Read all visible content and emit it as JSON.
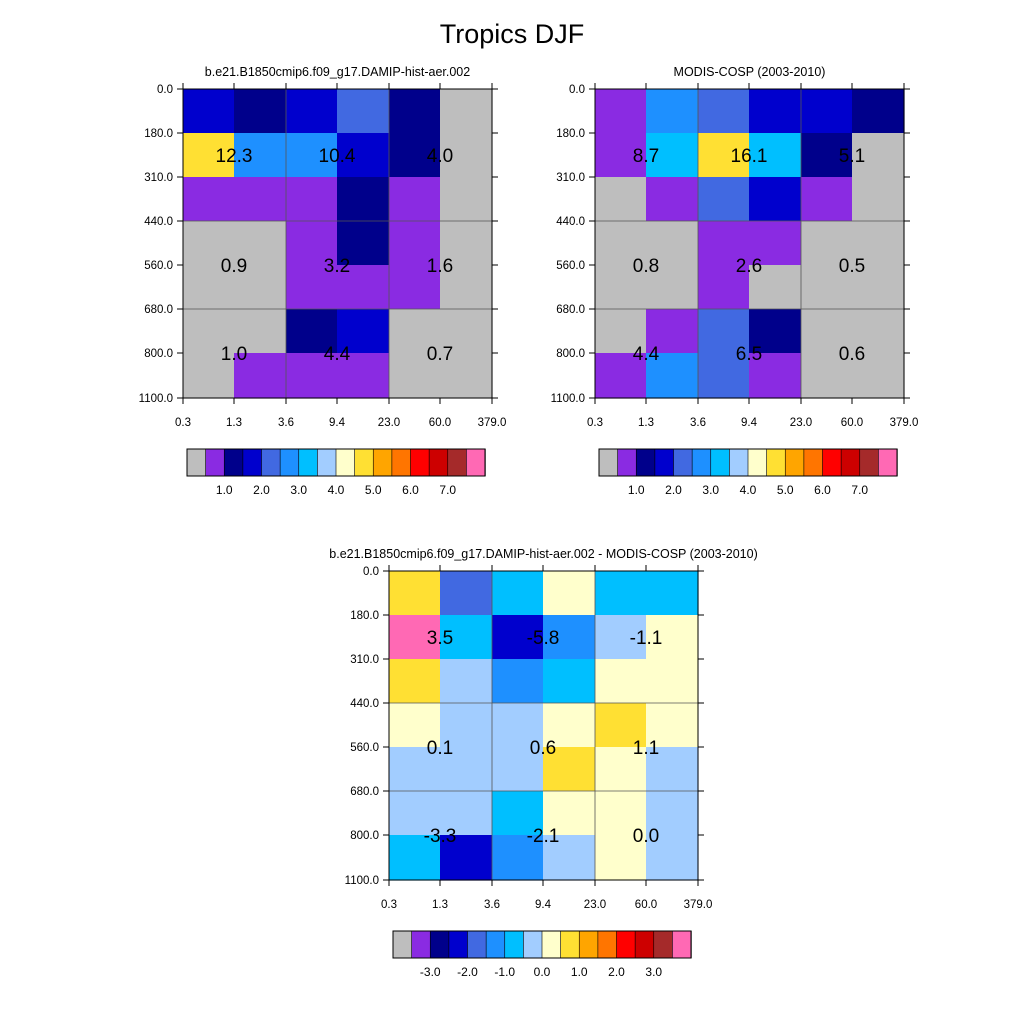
{
  "figure_title": "Tropics DJF",
  "chart_data": [
    {
      "type": "heatmap",
      "title": "b.e21.B1850cmip6.f09_g17.DAMIP-hist-aer.002",
      "x_ticks": [
        "0.3",
        "1.3",
        "3.6",
        "9.4",
        "23.0",
        "60.0",
        "379.0"
      ],
      "y_ticks": [
        "0.0",
        "180.0",
        "310.0",
        "440.0",
        "560.0",
        "680.0",
        "800.0",
        "1100.0"
      ],
      "cell_colors": [
        [
          "#0000CD",
          "#00008B",
          "#0000CD",
          "#4169E1",
          "#00008B",
          "#BEBEBE"
        ],
        [
          "#FFE033",
          "#1E90FF",
          "#1E90FF",
          "#0000CD",
          "#00008B",
          "#BEBEBE"
        ],
        [
          "#8A2BE2",
          "#8A2BE2",
          "#8A2BE2",
          "#00008B",
          "#8A2BE2",
          "#BEBEBE"
        ],
        [
          "#BEBEBE",
          "#BEBEBE",
          "#8A2BE2",
          "#00008B",
          "#8A2BE2",
          "#BEBEBE"
        ],
        [
          "#BEBEBE",
          "#BEBEBE",
          "#8A2BE2",
          "#8A2BE2",
          "#8A2BE2",
          "#BEBEBE"
        ],
        [
          "#BEBEBE",
          "#BEBEBE",
          "#00008B",
          "#0000CD",
          "#BEBEBE",
          "#BEBEBE"
        ],
        [
          "#BEBEBE",
          "#8A2BE2",
          "#8A2BE2",
          "#8A2BE2",
          "#BEBEBE",
          "#BEBEBE"
        ]
      ],
      "block_labels": [
        {
          "value": "12.3",
          "col": 1,
          "row": 1.5
        },
        {
          "value": "10.4",
          "col": 3,
          "row": 1.5
        },
        {
          "value": "4.0",
          "col": 5,
          "row": 1.5
        },
        {
          "value": "0.9",
          "col": 1,
          "row": 4
        },
        {
          "value": "3.2",
          "col": 3,
          "row": 4
        },
        {
          "value": "1.6",
          "col": 5,
          "row": 4
        },
        {
          "value": "1.0",
          "col": 1,
          "row": 6
        },
        {
          "value": "4.4",
          "col": 3,
          "row": 6
        },
        {
          "value": "0.7",
          "col": 5,
          "row": 6
        }
      ],
      "colorbar": {
        "colors": [
          "#BEBEBE",
          "#8A2BE2",
          "#00008B",
          "#0000CD",
          "#4169E1",
          "#1E90FF",
          "#00BFFF",
          "#A2CDFF",
          "#FFFFCC",
          "#FFE033",
          "#FFA500",
          "#FF7500",
          "#FF0000",
          "#CD0000",
          "#A52A2A",
          "#FF69B4"
        ],
        "labels": [
          "1.0",
          "2.0",
          "3.0",
          "4.0",
          "5.0",
          "6.0",
          "7.0"
        ],
        "label_first_boundary": 2
      }
    },
    {
      "type": "heatmap",
      "title": "MODIS-COSP (2003-2010)",
      "x_ticks": [
        "0.3",
        "1.3",
        "3.6",
        "9.4",
        "23.0",
        "60.0",
        "379.0"
      ],
      "y_ticks": [
        "0.0",
        "180.0",
        "310.0",
        "440.0",
        "560.0",
        "680.0",
        "800.0",
        "1100.0"
      ],
      "cell_colors": [
        [
          "#8A2BE2",
          "#1E90FF",
          "#4169E1",
          "#0000CD",
          "#0000CD",
          "#00008B"
        ],
        [
          "#8A2BE2",
          "#00BFFF",
          "#FFE033",
          "#00BFFF",
          "#00008B",
          "#BEBEBE"
        ],
        [
          "#BEBEBE",
          "#8A2BE2",
          "#4169E1",
          "#0000CD",
          "#8A2BE2",
          "#BEBEBE"
        ],
        [
          "#BEBEBE",
          "#BEBEBE",
          "#8A2BE2",
          "#8A2BE2",
          "#BEBEBE",
          "#BEBEBE"
        ],
        [
          "#BEBEBE",
          "#BEBEBE",
          "#8A2BE2",
          "#BEBEBE",
          "#BEBEBE",
          "#BEBEBE"
        ],
        [
          "#BEBEBE",
          "#8A2BE2",
          "#4169E1",
          "#00008B",
          "#BEBEBE",
          "#BEBEBE"
        ],
        [
          "#8A2BE2",
          "#1E90FF",
          "#4169E1",
          "#8A2BE2",
          "#BEBEBE",
          "#BEBEBE"
        ]
      ],
      "block_labels": [
        {
          "value": "8.7",
          "col": 1,
          "row": 1.5
        },
        {
          "value": "16.1",
          "col": 3,
          "row": 1.5
        },
        {
          "value": "5.1",
          "col": 5,
          "row": 1.5
        },
        {
          "value": "0.8",
          "col": 1,
          "row": 4
        },
        {
          "value": "2.6",
          "col": 3,
          "row": 4
        },
        {
          "value": "0.5",
          "col": 5,
          "row": 4
        },
        {
          "value": "4.4",
          "col": 1,
          "row": 6
        },
        {
          "value": "6.5",
          "col": 3,
          "row": 6
        },
        {
          "value": "0.6",
          "col": 5,
          "row": 6
        }
      ],
      "colorbar": {
        "colors": [
          "#BEBEBE",
          "#8A2BE2",
          "#00008B",
          "#0000CD",
          "#4169E1",
          "#1E90FF",
          "#00BFFF",
          "#A2CDFF",
          "#FFFFCC",
          "#FFE033",
          "#FFA500",
          "#FF7500",
          "#FF0000",
          "#CD0000",
          "#A52A2A",
          "#FF69B4"
        ],
        "labels": [
          "1.0",
          "2.0",
          "3.0",
          "4.0",
          "5.0",
          "6.0",
          "7.0"
        ],
        "label_first_boundary": 2
      }
    },
    {
      "type": "heatmap",
      "title": "b.e21.B1850cmip6.f09_g17.DAMIP-hist-aer.002 - MODIS-COSP (2003-2010)",
      "x_ticks": [
        "0.3",
        "1.3",
        "3.6",
        "9.4",
        "23.0",
        "60.0",
        "379.0"
      ],
      "y_ticks": [
        "0.0",
        "180.0",
        "310.0",
        "440.0",
        "560.0",
        "680.0",
        "800.0",
        "1100.0"
      ],
      "cell_colors": [
        [
          "#FFE033",
          "#4169E1",
          "#00BFFF",
          "#FFFFCC",
          "#00BFFF",
          "#00BFFF"
        ],
        [
          "#FF69B4",
          "#00BFFF",
          "#0000CD",
          "#1E90FF",
          "#A2CDFF",
          "#FFFFCC"
        ],
        [
          "#FFE033",
          "#A2CDFF",
          "#1E90FF",
          "#00BFFF",
          "#FFFFCC",
          "#FFFFCC"
        ],
        [
          "#FFFFCC",
          "#A2CDFF",
          "#A2CDFF",
          "#FFFFCC",
          "#FFE033",
          "#FFFFCC"
        ],
        [
          "#A2CDFF",
          "#A2CDFF",
          "#A2CDFF",
          "#FFE033",
          "#FFFFCC",
          "#A2CDFF"
        ],
        [
          "#A2CDFF",
          "#A2CDFF",
          "#00BFFF",
          "#FFFFCC",
          "#FFFFCC",
          "#A2CDFF"
        ],
        [
          "#00BFFF",
          "#0000CD",
          "#1E90FF",
          "#A2CDFF",
          "#FFFFCC",
          "#A2CDFF"
        ]
      ],
      "block_labels": [
        {
          "value": "3.5",
          "col": 1,
          "row": 1.5
        },
        {
          "value": "-5.8",
          "col": 3,
          "row": 1.5
        },
        {
          "value": "-1.1",
          "col": 5,
          "row": 1.5
        },
        {
          "value": "0.1",
          "col": 1,
          "row": 4
        },
        {
          "value": "0.6",
          "col": 3,
          "row": 4
        },
        {
          "value": "1.1",
          "col": 5,
          "row": 4
        },
        {
          "value": "-3.3",
          "col": 1,
          "row": 6
        },
        {
          "value": "-2.1",
          "col": 3,
          "row": 6
        },
        {
          "value": "0.0",
          "col": 5,
          "row": 6
        }
      ],
      "colorbar": {
        "colors": [
          "#BEBEBE",
          "#8A2BE2",
          "#00008B",
          "#0000CD",
          "#4169E1",
          "#1E90FF",
          "#00BFFF",
          "#A2CDFF",
          "#FFFFCC",
          "#FFE033",
          "#FFA500",
          "#FF7500",
          "#FF0000",
          "#CD0000",
          "#A52A2A",
          "#FF69B4"
        ],
        "labels": [
          "-3.0",
          "-2.0",
          "-1.0",
          "0.0",
          "1.0",
          "2.0",
          "3.0"
        ],
        "label_first_boundary": 2
      }
    }
  ]
}
